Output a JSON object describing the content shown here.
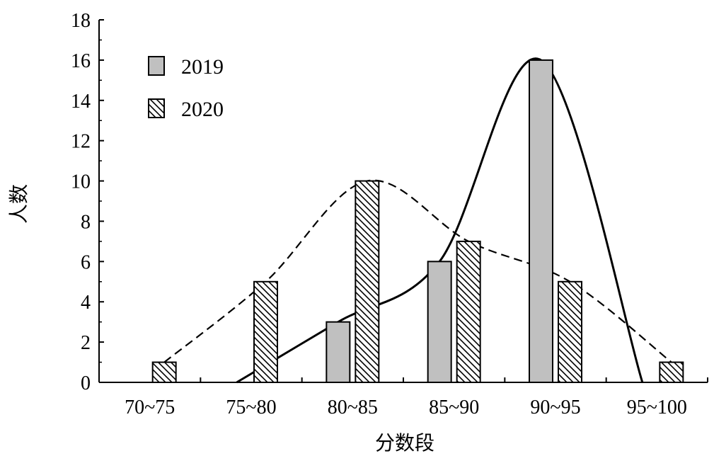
{
  "chart_data": {
    "type": "bar",
    "xlabel": "分数段",
    "ylabel": "人数",
    "categories": [
      "70~75",
      "75~80",
      "80~85",
      "85~90",
      "90~95",
      "95~100"
    ],
    "ylim": [
      0,
      18
    ],
    "yticks": [
      0,
      2,
      4,
      6,
      8,
      10,
      12,
      14,
      16,
      18
    ],
    "series": [
      {
        "name": "2019",
        "values": [
          0,
          0,
          3,
          6,
          16,
          0
        ],
        "fill": "#c0c0c0",
        "pattern": "solid",
        "trend_line": "solid"
      },
      {
        "name": "2020",
        "values": [
          1,
          5,
          10,
          7,
          5,
          1
        ],
        "fill": "#ffffff",
        "pattern": "diagonal-hatch",
        "trend_line": "dashed"
      }
    ],
    "legend_position": "top-left",
    "grid": false
  }
}
